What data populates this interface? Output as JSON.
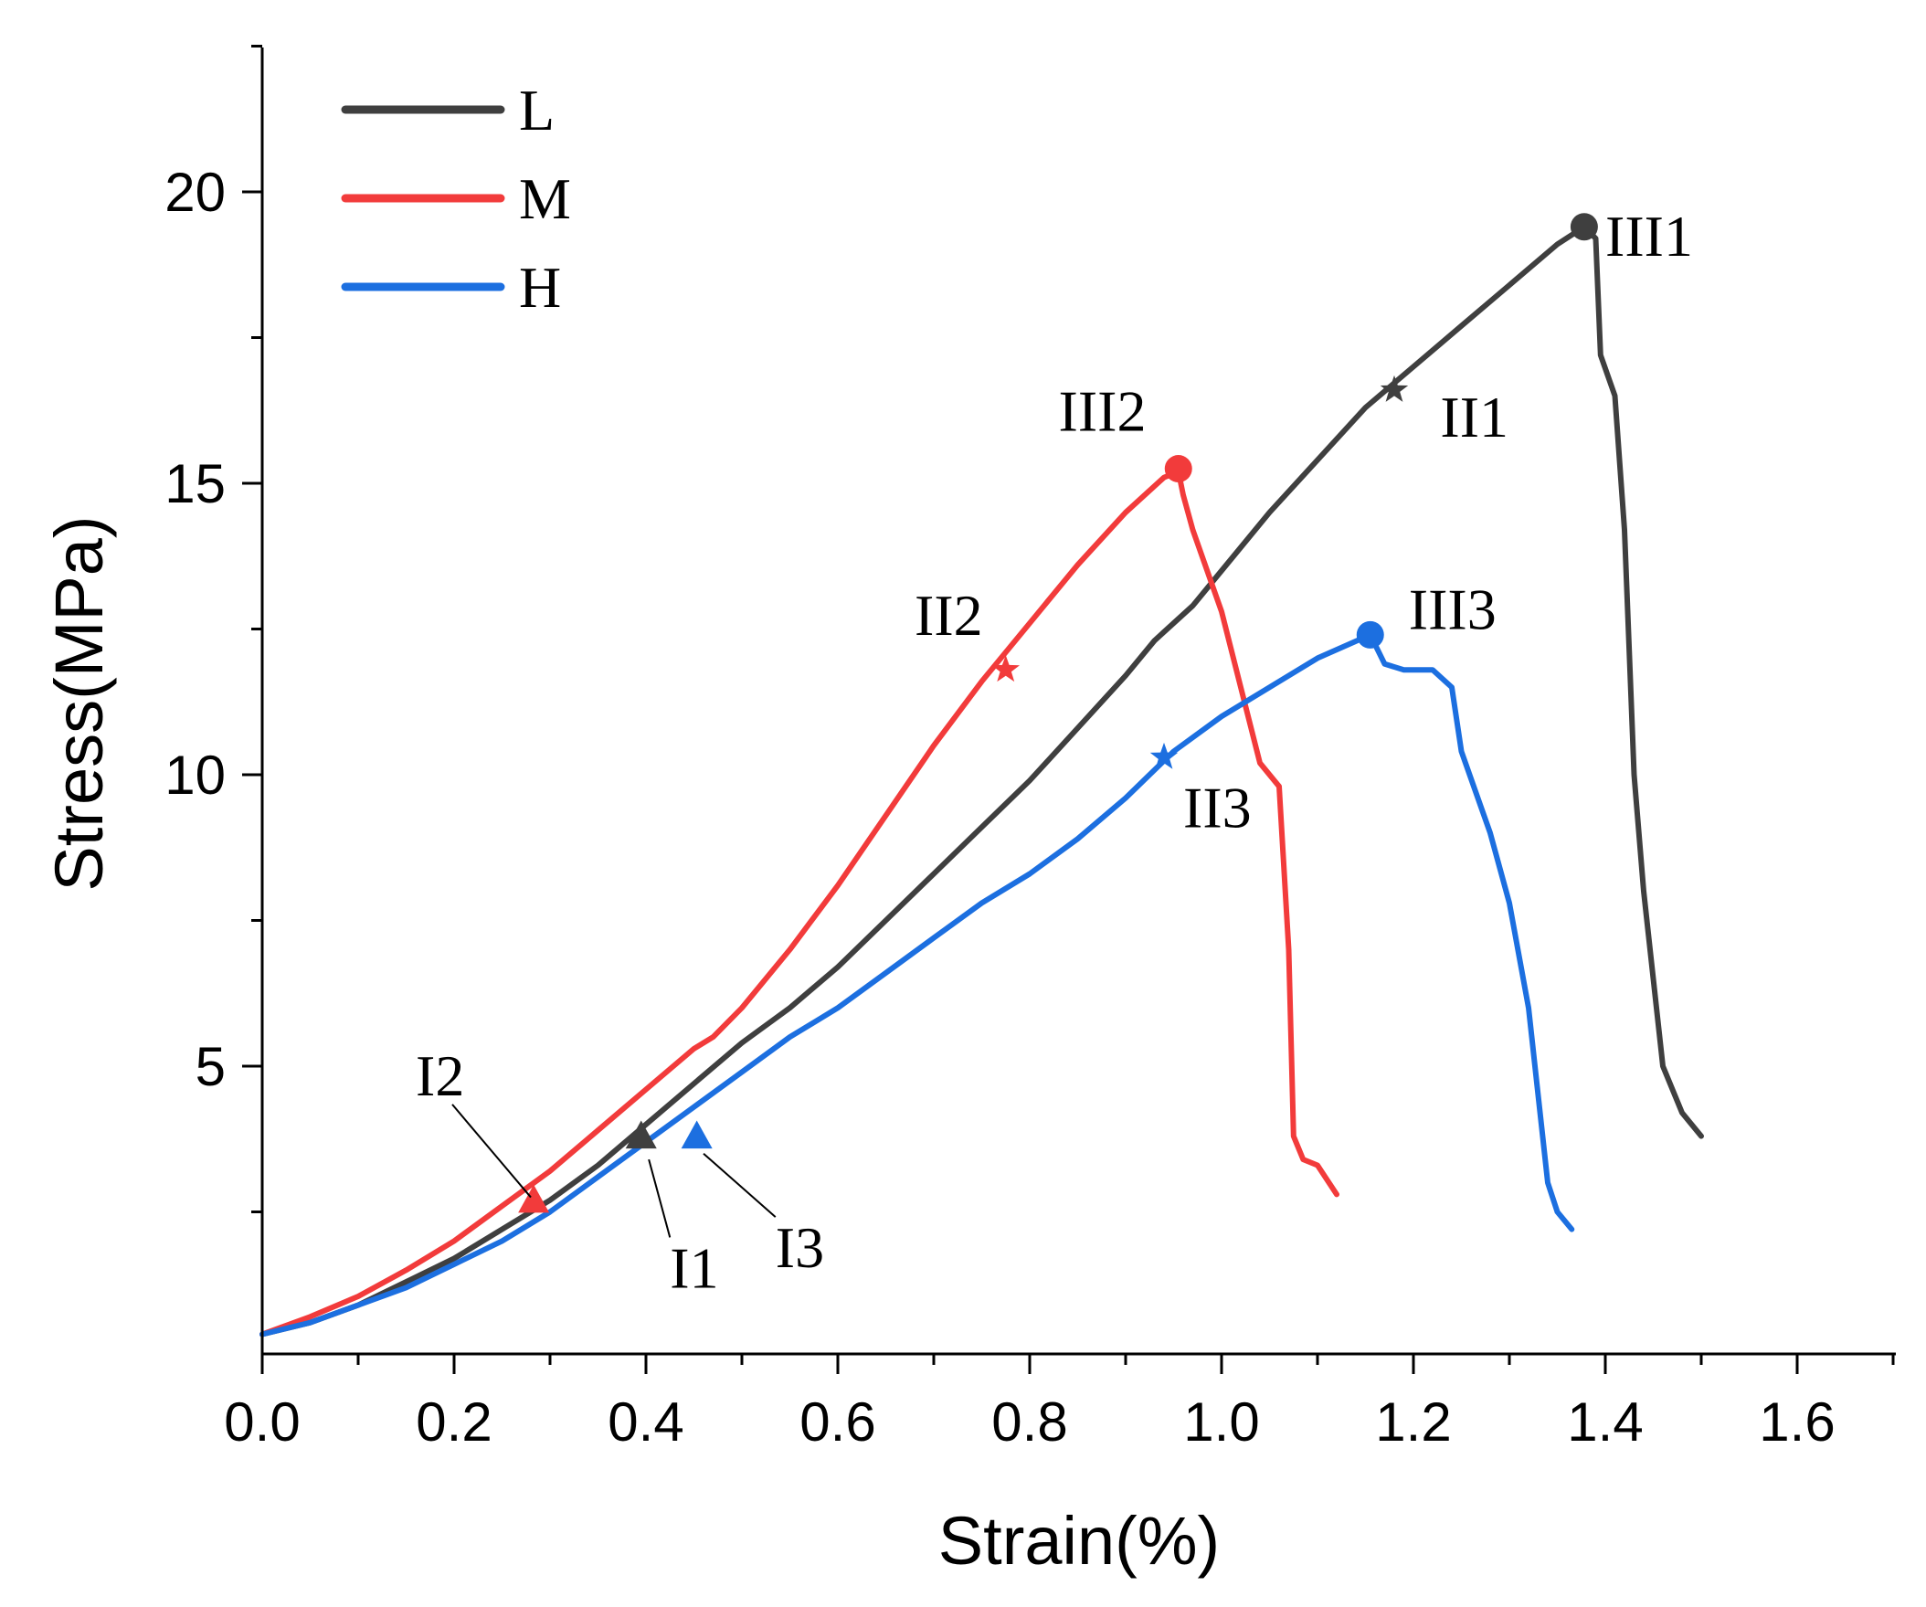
{
  "chart_data": {
    "type": "line",
    "title": "",
    "xlabel": "Strain(%)",
    "ylabel": "Stress(MPa)",
    "xlim": [
      0,
      1.7
    ],
    "ylim": [
      0.2,
      22.5
    ],
    "xticks": [
      "0.0",
      "0.2",
      "0.4",
      "0.6",
      "0.8",
      "1.0",
      "1.2",
      "1.4",
      "1.6"
    ],
    "xtick_values": [
      0,
      0.2,
      0.4,
      0.6,
      0.8,
      1.0,
      1.2,
      1.4,
      1.6
    ],
    "yticks": [
      "5",
      "10",
      "15",
      "20"
    ],
    "ytick_values": [
      5,
      10,
      15,
      20
    ],
    "grid": false,
    "legend_position": "top-left",
    "series": [
      {
        "name": "L",
        "color": "#3f3f3f",
        "x": [
          0,
          0.05,
          0.1,
          0.15,
          0.2,
          0.25,
          0.3,
          0.35,
          0.4,
          0.45,
          0.5,
          0.55,
          0.6,
          0.65,
          0.7,
          0.75,
          0.8,
          0.85,
          0.9,
          0.93,
          0.95,
          0.97,
          1.0,
          1.05,
          1.1,
          1.15,
          1.2,
          1.25,
          1.3,
          1.35,
          1.378,
          1.39,
          1.395,
          1.41,
          1.42,
          1.43,
          1.44,
          1.45,
          1.46,
          1.48,
          1.5
        ],
        "y": [
          0.4,
          0.6,
          0.9,
          1.3,
          1.7,
          2.2,
          2.7,
          3.3,
          4.0,
          4.7,
          5.4,
          6.0,
          6.7,
          7.5,
          8.3,
          9.1,
          9.9,
          10.8,
          11.7,
          12.3,
          12.6,
          12.9,
          13.5,
          14.5,
          15.4,
          16.3,
          17.0,
          17.7,
          18.4,
          19.1,
          19.4,
          19.2,
          17.2,
          16.5,
          14.2,
          10.0,
          8.0,
          6.5,
          5.0,
          4.2,
          3.8
        ]
      },
      {
        "name": "M",
        "color": "#f23b3b",
        "x": [
          0,
          0.05,
          0.1,
          0.15,
          0.2,
          0.25,
          0.3,
          0.35,
          0.4,
          0.45,
          0.47,
          0.5,
          0.55,
          0.6,
          0.65,
          0.7,
          0.75,
          0.8,
          0.85,
          0.9,
          0.94,
          0.955,
          0.96,
          0.97,
          1.0,
          1.02,
          1.04,
          1.06,
          1.07,
          1.075,
          1.085,
          1.1,
          1.12
        ],
        "y": [
          0.4,
          0.7,
          1.05,
          1.5,
          2.0,
          2.6,
          3.2,
          3.9,
          4.6,
          5.3,
          5.5,
          6.0,
          7.0,
          8.1,
          9.3,
          10.5,
          11.6,
          12.6,
          13.6,
          14.5,
          15.1,
          15.2,
          14.8,
          14.2,
          12.8,
          11.5,
          10.2,
          9.8,
          7.0,
          3.8,
          3.4,
          3.3,
          2.8
        ]
      },
      {
        "name": "H",
        "color": "#1c6fe0",
        "x": [
          0,
          0.05,
          0.1,
          0.15,
          0.2,
          0.25,
          0.3,
          0.35,
          0.4,
          0.45,
          0.5,
          0.55,
          0.6,
          0.65,
          0.7,
          0.75,
          0.8,
          0.85,
          0.9,
          0.95,
          1.0,
          1.05,
          1.1,
          1.155,
          1.17,
          1.19,
          1.22,
          1.24,
          1.25,
          1.28,
          1.3,
          1.32,
          1.33,
          1.34,
          1.35,
          1.365
        ],
        "y": [
          0.4,
          0.6,
          0.9,
          1.2,
          1.6,
          2.0,
          2.5,
          3.1,
          3.7,
          4.3,
          4.9,
          5.5,
          6.0,
          6.6,
          7.2,
          7.8,
          8.3,
          8.9,
          9.6,
          10.4,
          11.0,
          11.5,
          12.0,
          12.4,
          11.9,
          11.8,
          11.8,
          11.5,
          10.4,
          9.0,
          7.8,
          6.0,
          4.5,
          3.0,
          2.5,
          2.2
        ]
      }
    ],
    "markers": [
      {
        "series": "L",
        "shape": "triangle",
        "x": 0.395,
        "y": 3.8
      },
      {
        "series": "M",
        "shape": "triangle",
        "x": 0.283,
        "y": 2.7
      },
      {
        "series": "H",
        "shape": "triangle",
        "x": 0.453,
        "y": 3.8
      },
      {
        "series": "L",
        "shape": "star",
        "x": 1.18,
        "y": 16.6
      },
      {
        "series": "M",
        "shape": "star",
        "x": 0.775,
        "y": 11.8
      },
      {
        "series": "H",
        "shape": "star",
        "x": 0.94,
        "y": 10.3
      },
      {
        "series": "L",
        "shape": "circle",
        "x": 1.378,
        "y": 19.4
      },
      {
        "series": "M",
        "shape": "circle",
        "x": 0.955,
        "y": 15.25
      },
      {
        "series": "H",
        "shape": "circle",
        "x": 1.155,
        "y": 12.4
      }
    ],
    "annotations": [
      {
        "text": "III1",
        "x": 1.4,
        "y": 18.9,
        "arrow": false
      },
      {
        "text": "II1",
        "x": 1.228,
        "y": 15.8,
        "arrow": false
      },
      {
        "text": "III2",
        "x": 0.83,
        "y": 15.9,
        "arrow": false
      },
      {
        "text": "II2",
        "x": 0.68,
        "y": 12.4,
        "arrow": false
      },
      {
        "text": "III3",
        "x": 1.195,
        "y": 12.5,
        "arrow": false
      },
      {
        "text": "II3",
        "x": 0.96,
        "y": 9.1,
        "arrow": false
      },
      {
        "text": "I2",
        "x": 0.16,
        "y": 4.5,
        "arrow": true,
        "arrow_to_x": 0.28,
        "arrow_to_y": 2.75
      },
      {
        "text": "I1",
        "x": 0.425,
        "y": 1.2,
        "arrow": true,
        "arrow_to_x": 0.403,
        "arrow_to_y": 3.4
      },
      {
        "text": "I3",
        "x": 0.535,
        "y": 1.55,
        "arrow": true,
        "arrow_to_x": 0.46,
        "arrow_to_y": 3.5
      }
    ]
  }
}
